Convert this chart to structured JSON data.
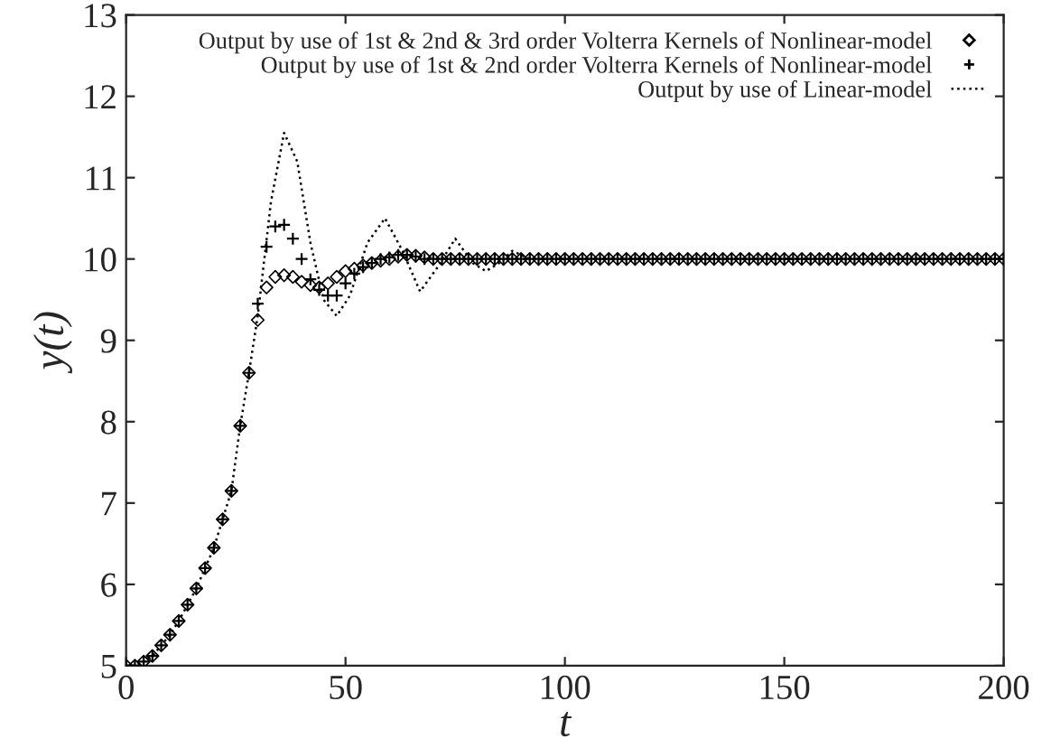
{
  "chart_data": {
    "type": "line",
    "xlabel": "t",
    "ylabel": "y(t)",
    "xlim": [
      0,
      200
    ],
    "ylim": [
      5,
      13
    ],
    "xticks": [
      0,
      50,
      100,
      150,
      200
    ],
    "yticks": [
      5,
      6,
      7,
      8,
      9,
      10,
      11,
      12,
      13
    ],
    "grid": false,
    "legend": "top right",
    "x": [
      0,
      2,
      4,
      6,
      8,
      10,
      12,
      14,
      16,
      18,
      20,
      22,
      24,
      26,
      28,
      30,
      32,
      34,
      36,
      38,
      40,
      42,
      44,
      46,
      48,
      50,
      52,
      54,
      56,
      58,
      60,
      62,
      64,
      66,
      68,
      70,
      72,
      74,
      76,
      78,
      80,
      82,
      84,
      86,
      88,
      90,
      92,
      94,
      96,
      98,
      100,
      102,
      104,
      106,
      108,
      110,
      112,
      114,
      116,
      118,
      120,
      122,
      124,
      126,
      128,
      130,
      132,
      134,
      136,
      138,
      140,
      142,
      144,
      146,
      148,
      150,
      152,
      154,
      156,
      158,
      160,
      162,
      164,
      166,
      168,
      170,
      172,
      174,
      176,
      178,
      180,
      182,
      184,
      186,
      188,
      190,
      192,
      194,
      196,
      198,
      200
    ],
    "series": [
      {
        "name": "Output by use of 1st & 2nd & 3rd order Volterra Kernels of Nonlinear-model",
        "type": "scatter",
        "marker": "diamond",
        "color": "#000000",
        "values": [
          5.0,
          5.0,
          5.05,
          5.12,
          5.25,
          5.38,
          5.55,
          5.75,
          5.95,
          6.2,
          6.45,
          6.8,
          7.15,
          7.95,
          8.6,
          9.25,
          9.65,
          9.78,
          9.8,
          9.78,
          9.72,
          9.68,
          9.65,
          9.7,
          9.78,
          9.85,
          9.88,
          9.92,
          9.95,
          9.98,
          10.0,
          10.03,
          10.05,
          10.04,
          10.02,
          10.0,
          10.0,
          10.0,
          10.0,
          10.0,
          10.0,
          10.0,
          10.0,
          10.0,
          10.0,
          10.0,
          10.0,
          10.0,
          10.0,
          10.0,
          10.0,
          10.0,
          10.0,
          10.0,
          10.0,
          10.0,
          10.0,
          10.0,
          10.0,
          10.0,
          10.0,
          10.0,
          10.0,
          10.0,
          10.0,
          10.0,
          10.0,
          10.0,
          10.0,
          10.0,
          10.0,
          10.0,
          10.0,
          10.0,
          10.0,
          10.0,
          10.0,
          10.0,
          10.0,
          10.0,
          10.0,
          10.0,
          10.0,
          10.0,
          10.0,
          10.0,
          10.0,
          10.0,
          10.0,
          10.0,
          10.0,
          10.0,
          10.0,
          10.0,
          10.0,
          10.0,
          10.0,
          10.0,
          10.0,
          10.0,
          10.0
        ]
      },
      {
        "name": "Output by use of 1st & 2nd order Volterra Kernels of Nonlinear-model",
        "type": "scatter",
        "marker": "cross",
        "color": "#000000",
        "values": [
          5.0,
          5.0,
          5.05,
          5.12,
          5.25,
          5.38,
          5.55,
          5.75,
          5.95,
          6.2,
          6.45,
          6.8,
          7.15,
          7.95,
          8.6,
          9.45,
          10.15,
          10.4,
          10.42,
          10.25,
          10.0,
          9.75,
          9.62,
          9.55,
          9.55,
          9.7,
          9.82,
          9.9,
          9.95,
          10.0,
          10.02,
          10.05,
          10.05,
          10.03,
          10.0,
          10.0,
          10.0,
          10.0,
          10.0,
          10.0,
          10.0,
          10.0,
          10.0,
          10.0,
          10.0,
          10.0,
          10.0,
          10.0,
          10.0,
          10.0,
          10.0,
          10.0,
          10.0,
          10.0,
          10.0,
          10.0,
          10.0,
          10.0,
          10.0,
          10.0,
          10.0,
          10.0,
          10.0,
          10.0,
          10.0,
          10.0,
          10.0,
          10.0,
          10.0,
          10.0,
          10.0,
          10.0,
          10.0,
          10.0,
          10.0,
          10.0,
          10.0,
          10.0,
          10.0,
          10.0,
          10.0,
          10.0,
          10.0,
          10.0,
          10.0,
          10.0,
          10.0,
          10.0,
          10.0,
          10.0,
          10.0,
          10.0,
          10.0,
          10.0,
          10.0,
          10.0,
          10.0,
          10.0,
          10.0,
          10.0,
          10.0
        ]
      },
      {
        "name": "Output by use of Linear-model",
        "line_style": "dotted",
        "color": "#000000",
        "x": [
          0,
          2,
          4,
          6,
          8,
          10,
          12,
          14,
          16,
          18,
          20,
          22,
          24,
          26,
          28,
          30,
          33,
          36,
          39,
          42,
          45,
          48,
          51,
          55,
          59,
          63,
          67,
          71,
          75,
          79,
          82,
          85,
          88,
          92,
          96,
          100,
          200
        ],
        "values": [
          5.0,
          5.0,
          5.05,
          5.12,
          5.25,
          5.38,
          5.55,
          5.75,
          5.95,
          6.2,
          6.45,
          6.8,
          7.15,
          7.95,
          8.6,
          9.3,
          10.7,
          11.55,
          11.2,
          10.2,
          9.5,
          9.3,
          9.55,
          10.2,
          10.5,
          10.1,
          9.6,
          9.9,
          10.25,
          9.95,
          9.85,
          9.95,
          10.1,
          10.0,
          10.0,
          10.0,
          10.0
        ]
      }
    ]
  }
}
